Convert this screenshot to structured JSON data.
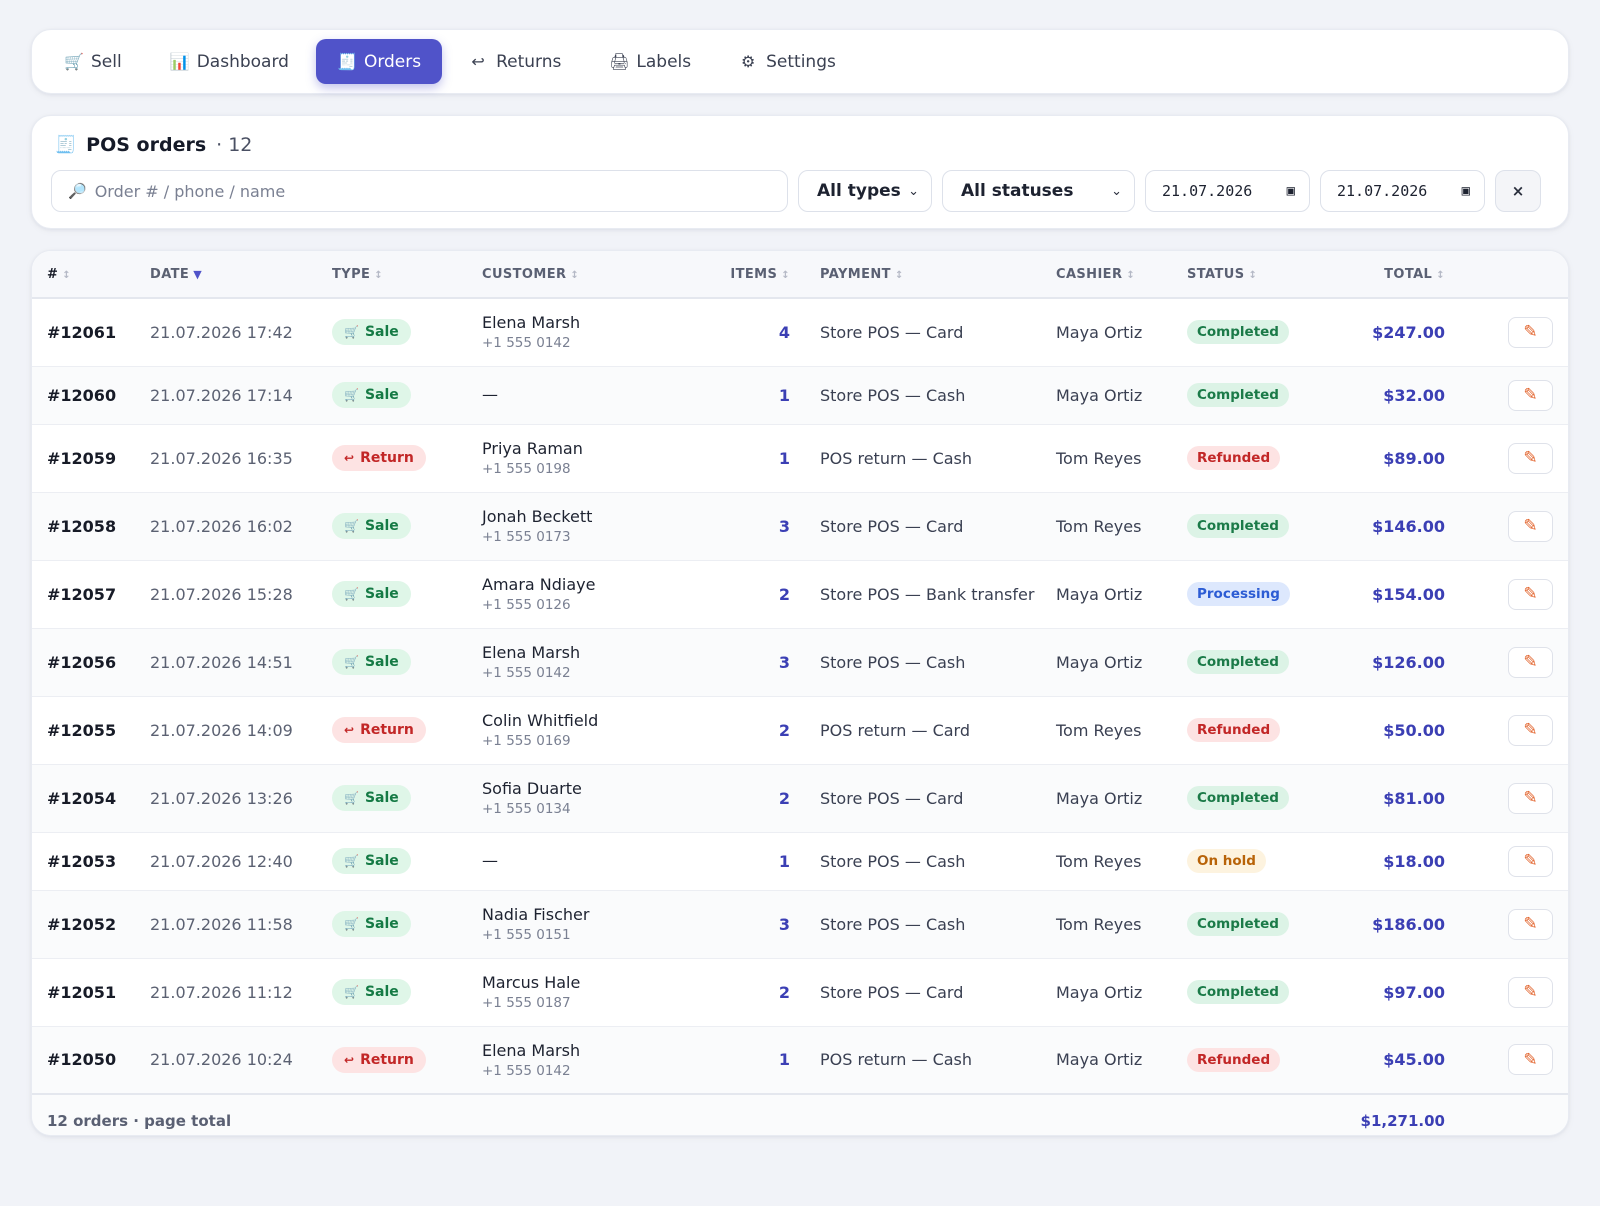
{
  "nav": {
    "tabs": [
      {
        "label": "Sell",
        "icon": "🛒",
        "active": false
      },
      {
        "label": "Dashboard",
        "icon": "📊",
        "active": false
      },
      {
        "label": "Orders",
        "icon": "🧾",
        "active": true
      },
      {
        "label": "Returns",
        "icon": "↩",
        "active": false
      },
      {
        "label": "Labels",
        "icon": "🖨",
        "active": false
      },
      {
        "label": "Settings",
        "icon": "⚙",
        "active": false
      }
    ]
  },
  "filters": {
    "title": "POS orders",
    "count": "· 12",
    "title_icon": "🧾",
    "search_placeholder": "Order # / phone / name",
    "search_icon": "🔎",
    "type_select": "All types",
    "status_select": "All statuses",
    "date_from": "21.07.2026",
    "date_to": "21.07.2026",
    "clear_label": "×"
  },
  "table": {
    "headers": {
      "id": "#",
      "date": "DATE",
      "type": "TYPE",
      "customer": "CUSTOMER",
      "items": "ITEMS",
      "payment": "PAYMENT",
      "cashier": "CASHIER",
      "status": "STATUS",
      "total": "TOTAL"
    },
    "rows": [
      {
        "id": "#12061",
        "date": "21.07.2026 17:42",
        "type": "Sale",
        "customer": "Elena Marsh",
        "phone": "+1 555 0142",
        "items": "4",
        "payment": "Store POS — Card",
        "cashier": "Maya Ortiz",
        "status": "Completed",
        "total": "$247.00"
      },
      {
        "id": "#12060",
        "date": "21.07.2026 17:14",
        "type": "Sale",
        "customer": "—",
        "phone": "",
        "items": "1",
        "payment": "Store POS — Cash",
        "cashier": "Maya Ortiz",
        "status": "Completed",
        "total": "$32.00"
      },
      {
        "id": "#12059",
        "date": "21.07.2026 16:35",
        "type": "Return",
        "customer": "Priya Raman",
        "phone": "+1 555 0198",
        "items": "1",
        "payment": "POS return — Cash",
        "cashier": "Tom Reyes",
        "status": "Refunded",
        "total": "$89.00"
      },
      {
        "id": "#12058",
        "date": "21.07.2026 16:02",
        "type": "Sale",
        "customer": "Jonah Beckett",
        "phone": "+1 555 0173",
        "items": "3",
        "payment": "Store POS — Card",
        "cashier": "Tom Reyes",
        "status": "Completed",
        "total": "$146.00"
      },
      {
        "id": "#12057",
        "date": "21.07.2026 15:28",
        "type": "Sale",
        "customer": "Amara Ndiaye",
        "phone": "+1 555 0126",
        "items": "2",
        "payment": "Store POS — Bank transfer",
        "cashier": "Maya Ortiz",
        "status": "Processing",
        "total": "$154.00"
      },
      {
        "id": "#12056",
        "date": "21.07.2026 14:51",
        "type": "Sale",
        "customer": "Elena Marsh",
        "phone": "+1 555 0142",
        "items": "3",
        "payment": "Store POS — Cash",
        "cashier": "Maya Ortiz",
        "status": "Completed",
        "total": "$126.00"
      },
      {
        "id": "#12055",
        "date": "21.07.2026 14:09",
        "type": "Return",
        "customer": "Colin Whitfield",
        "phone": "+1 555 0169",
        "items": "2",
        "payment": "POS return — Card",
        "cashier": "Tom Reyes",
        "status": "Refunded",
        "total": "$50.00"
      },
      {
        "id": "#12054",
        "date": "21.07.2026 13:26",
        "type": "Sale",
        "customer": "Sofia Duarte",
        "phone": "+1 555 0134",
        "items": "2",
        "payment": "Store POS — Card",
        "cashier": "Maya Ortiz",
        "status": "Completed",
        "total": "$81.00"
      },
      {
        "id": "#12053",
        "date": "21.07.2026 12:40",
        "type": "Sale",
        "customer": "—",
        "phone": "",
        "items": "1",
        "payment": "Store POS — Cash",
        "cashier": "Tom Reyes",
        "status": "On hold",
        "total": "$18.00"
      },
      {
        "id": "#12052",
        "date": "21.07.2026 11:58",
        "type": "Sale",
        "customer": "Nadia Fischer",
        "phone": "+1 555 0151",
        "items": "3",
        "payment": "Store POS — Cash",
        "cashier": "Tom Reyes",
        "status": "Completed",
        "total": "$186.00"
      },
      {
        "id": "#12051",
        "date": "21.07.2026 11:12",
        "type": "Sale",
        "customer": "Marcus Hale",
        "phone": "+1 555 0187",
        "items": "2",
        "payment": "Store POS — Card",
        "cashier": "Maya Ortiz",
        "status": "Completed",
        "total": "$97.00"
      },
      {
        "id": "#12050",
        "date": "21.07.2026 10:24",
        "type": "Return",
        "customer": "Elena Marsh",
        "phone": "+1 555 0142",
        "items": "1",
        "payment": "POS return — Cash",
        "cashier": "Maya Ortiz",
        "status": "Refunded",
        "total": "$45.00"
      }
    ],
    "footer": {
      "label": "12 orders · page total",
      "total": "$1,271.00"
    }
  },
  "colors": {
    "accent": "#5053c9",
    "sale": "#157a45",
    "return": "#c22727",
    "completed": "#1b7a48",
    "refunded": "#c22727",
    "processing": "#2c5cd4",
    "on_hold": "#b86308"
  }
}
